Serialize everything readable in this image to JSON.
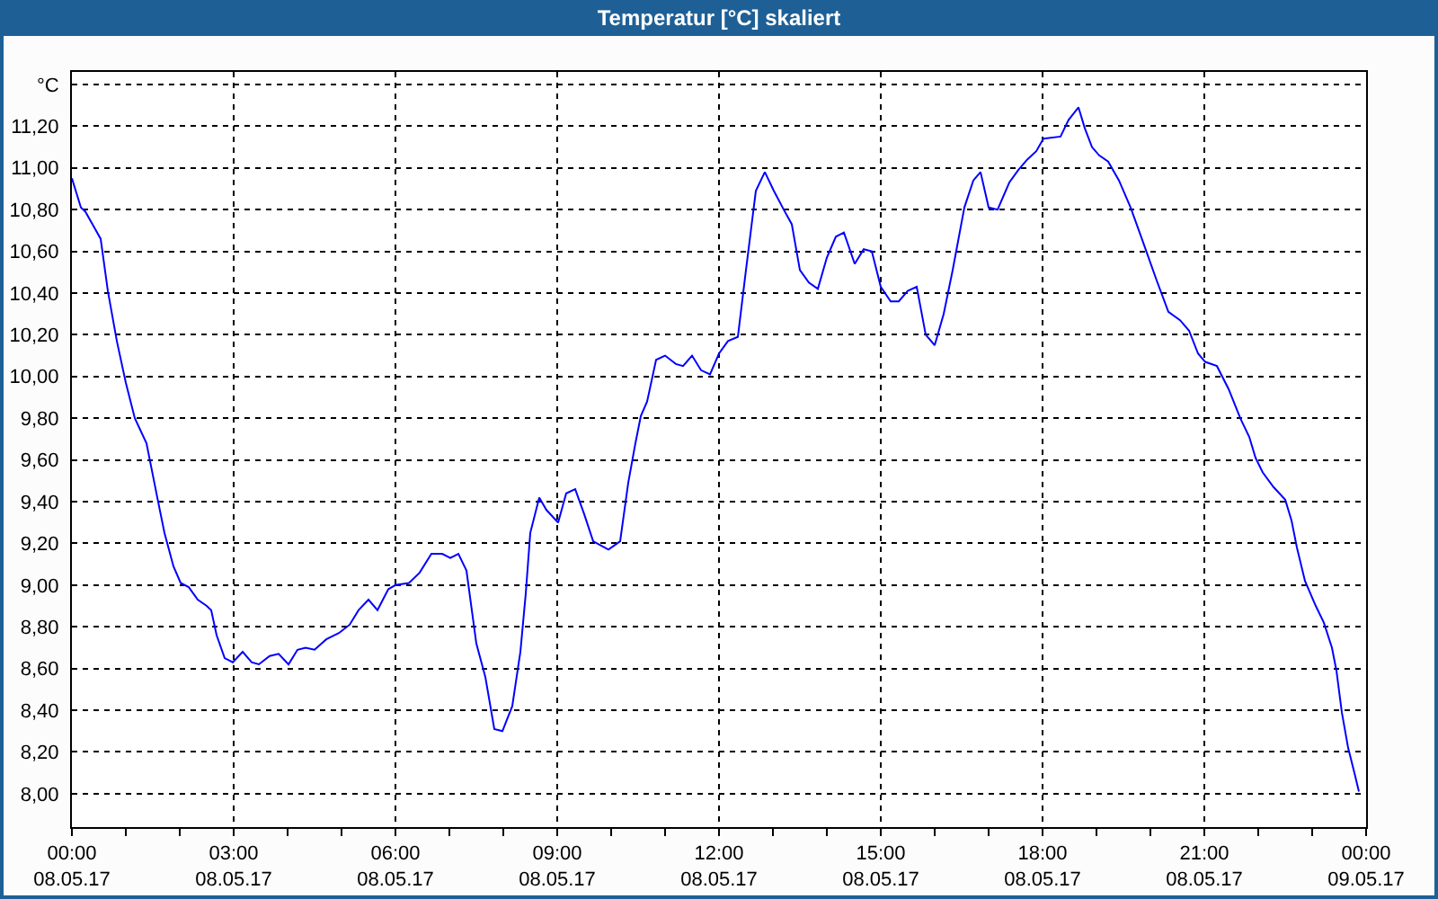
{
  "chart_data": {
    "type": "line",
    "title": "Temperatur [°C] skaliert",
    "x": [
      "--05-08T00:00",
      "--05-08T00:10",
      "--05-08T00:15",
      "--05-08T00:32",
      "--05-08T00:40",
      "--05-08T00:50",
      "--05-08T01:00",
      "--05-08T01:10",
      "--05-08T01:23",
      "--05-08T01:35",
      "--05-08T01:43",
      "--05-08T01:53",
      "--05-08T02:01",
      "--05-08T02:10",
      "--05-08T02:20",
      "--05-08T02:30",
      "--05-08T02:35",
      "--05-08T02:41",
      "--05-08T02:50",
      "--05-08T02:59",
      "--05-08T03:10",
      "--05-08T03:20",
      "--05-08T03:28",
      "--05-08T03:40",
      "--05-08T03:50",
      "--05-08T04:01",
      "--05-08T04:11",
      "--05-08T04:20",
      "--05-08T04:30",
      "--05-08T04:43",
      "--05-08T04:57",
      "--05-08T05:09",
      "--05-08T05:19",
      "--05-08T05:30",
      "--05-08T05:40",
      "--05-08T05:52",
      "--05-08T06:00",
      "--05-08T06:15",
      "--05-08T06:27",
      "--05-08T06:40",
      "--05-08T06:52",
      "--05-08T07:01",
      "--05-08T07:10",
      "--05-08T07:19",
      "--05-08T07:30",
      "--05-08T07:40",
      "--05-08T07:50",
      "--05-08T07:59",
      "--05-08T08:10",
      "--05-08T08:19",
      "--05-08T08:25",
      "--05-08T08:30",
      "--05-08T08:40",
      "--05-08T08:48",
      "--05-08T09:01",
      "--05-08T09:10",
      "--05-08T09:20",
      "--05-08T09:30",
      "--05-08T09:40",
      "--05-08T09:57",
      "--05-08T10:10",
      "--05-08T10:19",
      "--05-08T10:27",
      "--05-08T10:33",
      "--05-08T10:40",
      "--05-08T10:50",
      "--05-08T11:00",
      "--05-08T11:12",
      "--05-08T11:20",
      "--05-08T11:30",
      "--05-08T11:40",
      "--05-08T11:50",
      "--05-08T12:00",
      "--05-08T12:10",
      "--05-08T12:21",
      "--05-08T12:30",
      "--05-08T12:41",
      "--05-08T12:51",
      "--05-08T13:01",
      "--05-08T13:12",
      "--05-08T13:21",
      "--05-08T13:30",
      "--05-08T13:40",
      "--05-08T13:50",
      "--05-08T14:00",
      "--05-08T14:10",
      "--05-08T14:19",
      "--05-08T14:31",
      "--05-08T14:41",
      "--05-08T14:50",
      "--05-08T15:00",
      "--05-08T15:11",
      "--05-08T15:20",
      "--05-08T15:30",
      "--05-08T15:40",
      "--05-08T15:50",
      "--05-08T16:00",
      "--05-08T16:10",
      "--05-08T16:20",
      "--05-08T16:33",
      "--05-08T16:43",
      "--05-08T16:51",
      "--05-08T17:00",
      "--05-08T17:10",
      "--05-08T17:23",
      "--05-08T17:33",
      "--05-08T17:43",
      "--05-08T17:53",
      "--05-08T18:01",
      "--05-08T18:20",
      "--05-08T18:29",
      "--05-08T18:40",
      "--05-08T18:47",
      "--05-08T18:55",
      "--05-08T19:03",
      "--05-08T19:13",
      "--05-08T19:25",
      "--05-08T19:38",
      "--05-08T19:53",
      "--05-08T20:07",
      "--05-08T20:20",
      "--05-08T20:33",
      "--05-08T20:43",
      "--05-08T20:53",
      "--05-08T21:01",
      "--05-08T21:14",
      "--05-08T21:27",
      "--05-08T21:40",
      "--05-08T21:50",
      "--05-08T21:57",
      "--05-08T22:05",
      "--05-08T22:17",
      "--05-08T22:30",
      "--05-08T22:37",
      "--05-08T22:43",
      "--05-08T22:52",
      "--05-08T23:04",
      "--05-08T23:13",
      "--05-08T23:22",
      "--05-08T23:27",
      "--05-08T23:33",
      "--05-08T23:40",
      "--05-08T23:47",
      "--05-08T23:52"
    ],
    "series": [
      {
        "color": "#0000ff",
        "values": [
          10.95,
          10.81,
          10.79,
          10.66,
          10.41,
          10.17,
          9.97,
          9.8,
          9.68,
          9.42,
          9.25,
          9.09,
          9.01,
          8.99,
          8.93,
          8.9,
          8.88,
          8.76,
          8.65,
          8.63,
          8.68,
          8.63,
          8.62,
          8.66,
          8.67,
          8.62,
          8.69,
          8.7,
          8.69,
          8.74,
          8.77,
          8.81,
          8.88,
          8.93,
          8.88,
          8.98,
          9.0,
          9.01,
          9.06,
          9.15,
          9.15,
          9.13,
          9.15,
          9.07,
          8.72,
          8.56,
          8.31,
          8.3,
          8.42,
          8.68,
          8.96,
          9.25,
          9.42,
          9.36,
          9.3,
          9.44,
          9.46,
          9.34,
          9.21,
          9.17,
          9.21,
          9.49,
          9.68,
          9.81,
          9.88,
          10.08,
          10.1,
          10.06,
          10.05,
          10.1,
          10.03,
          10.01,
          10.11,
          10.17,
          10.19,
          10.51,
          10.89,
          10.98,
          10.89,
          10.8,
          10.73,
          10.51,
          10.45,
          10.42,
          10.57,
          10.67,
          10.69,
          10.54,
          10.61,
          10.6,
          10.43,
          10.36,
          10.36,
          10.41,
          10.43,
          10.2,
          10.15,
          10.3,
          10.51,
          10.81,
          10.94,
          10.98,
          10.81,
          10.8,
          10.93,
          10.99,
          11.04,
          11.08,
          11.14,
          11.15,
          11.23,
          11.29,
          11.19,
          11.1,
          11.06,
          11.03,
          10.94,
          10.81,
          10.63,
          10.46,
          10.31,
          10.27,
          10.22,
          10.11,
          10.07,
          10.05,
          9.94,
          9.8,
          9.71,
          9.61,
          9.54,
          9.47,
          9.41,
          9.31,
          9.18,
          9.02,
          8.9,
          8.82,
          8.7,
          8.59,
          8.39,
          8.22,
          8.1,
          8.01
        ]
      }
    ],
    "xlim": [
      "--05-08T00:00",
      "--05-09T00:00"
    ],
    "xticks": [
      {
        "value": "--05-08T00:00",
        "label": "00:00\n08.05.17"
      },
      {
        "value": "--05-08T01:00",
        "label": null
      },
      {
        "value": "--05-08T02:00",
        "label": null
      },
      {
        "value": "--05-08T03:00",
        "label": "03:00\n08.05.17"
      },
      {
        "value": "--05-08T04:00",
        "label": null
      },
      {
        "value": "--05-08T05:00",
        "label": null
      },
      {
        "value": "--05-08T06:00",
        "label": "06:00\n08.05.17"
      },
      {
        "value": "--05-08T07:00",
        "label": null
      },
      {
        "value": "--05-08T08:00",
        "label": null
      },
      {
        "value": "--05-08T09:00",
        "label": "09:00\n08.05.17"
      },
      {
        "value": "--05-08T10:00",
        "label": null
      },
      {
        "value": "--05-08T11:00",
        "label": null
      },
      {
        "value": "--05-08T12:00",
        "label": "12:00\n08.05.17"
      },
      {
        "value": "--05-08T13:00",
        "label": null
      },
      {
        "value": "--05-08T14:00",
        "label": null
      },
      {
        "value": "--05-08T15:00",
        "label": "15:00\n08.05.17"
      },
      {
        "value": "--05-08T16:00",
        "label": null
      },
      {
        "value": "--05-08T17:00",
        "label": null
      },
      {
        "value": "--05-08T18:00",
        "label": "18:00\n08.05.17"
      },
      {
        "value": "--05-08T19:00",
        "label": null
      },
      {
        "value": "--05-08T20:00",
        "label": null
      },
      {
        "value": "--05-08T21:00",
        "label": "21:00\n08.05.17"
      },
      {
        "value": "--05-08T22:00",
        "label": null
      },
      {
        "value": "--05-08T23:00",
        "label": null
      },
      {
        "value": "--05-09T00:00",
        "label": "00:00\n09.05.17"
      }
    ],
    "ylim": [
      7.84,
      11.46
    ],
    "yticks": [
      {
        "value": 8.0,
        "label": "8,00"
      },
      {
        "value": 8.2,
        "label": "8,20"
      },
      {
        "value": 8.4,
        "label": "8,40"
      },
      {
        "value": 8.6,
        "label": "8,60"
      },
      {
        "value": 8.8,
        "label": "8,80"
      },
      {
        "value": 9.0,
        "label": "9,00"
      },
      {
        "value": 9.2,
        "label": "9,20"
      },
      {
        "value": 9.4,
        "label": "9,40"
      },
      {
        "value": 9.6,
        "label": "9,60"
      },
      {
        "value": 9.8,
        "label": "9,80"
      },
      {
        "value": 10.0,
        "label": "10,00"
      },
      {
        "value": 10.2,
        "label": "10,20"
      },
      {
        "value": 10.4,
        "label": "10,40"
      },
      {
        "value": 10.6,
        "label": "10,60"
      },
      {
        "value": 10.8,
        "label": "10,80"
      },
      {
        "value": 11.0,
        "label": "11,00"
      },
      {
        "value": 11.2,
        "label": "11,20"
      },
      {
        "value": 11.4,
        "label": "°C"
      }
    ],
    "grid": true,
    "marker": "none",
    "line_style": "solid"
  }
}
